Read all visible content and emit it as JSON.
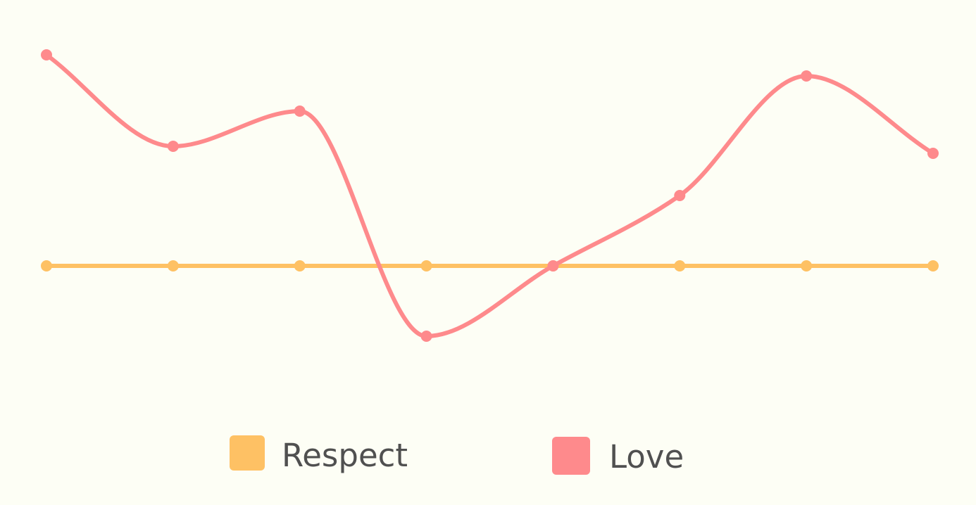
{
  "chart_data": {
    "type": "line",
    "background": "#FDFEF5",
    "grid": false,
    "axes_visible": false,
    "legend_position": "bottom",
    "smooth": true,
    "x": [
      1,
      2,
      3,
      4,
      5,
      6,
      7,
      8
    ],
    "ylim": [
      0,
      8
    ],
    "series": [
      {
        "name": "Respect",
        "color": "#FEC164",
        "values": [
          4,
          4,
          4,
          4,
          4,
          4,
          4,
          4
        ]
      },
      {
        "name": "Love",
        "color": "#FE8A8C",
        "values": [
          7,
          5.7,
          6.2,
          3,
          4,
          5,
          6.7,
          5.6
        ]
      }
    ]
  }
}
